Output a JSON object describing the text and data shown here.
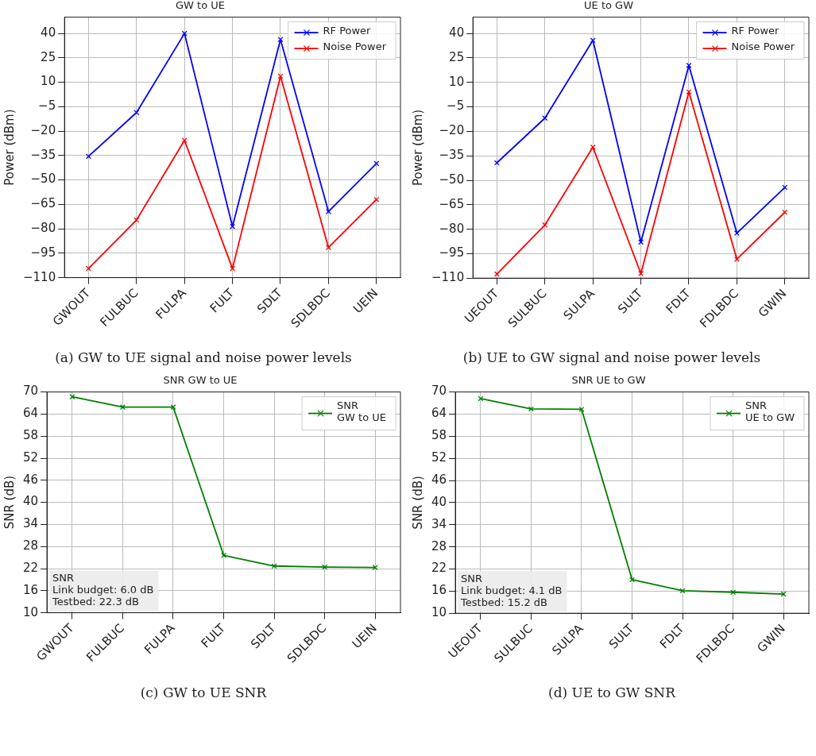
{
  "chart_data": [
    {
      "type": "line",
      "title": "GW to UE",
      "ylabel": "Power (dBm)",
      "categories": [
        "GWOUT",
        "FULBUC",
        "FULPA",
        "FULT",
        "SDLT",
        "SDLBDC",
        "UEIN"
      ],
      "series": [
        {
          "name": "RF Power",
          "color": "#0000ff",
          "values": [
            -35.5,
            -8.6,
            40,
            -78.6,
            36.3,
            -69.4,
            -39.9
          ]
        },
        {
          "name": "Noise Power",
          "color": "#ff0000",
          "values": [
            -104.4,
            -74.6,
            -25.7,
            -104.4,
            13.7,
            -91.5,
            -62
          ]
        }
      ],
      "ylim": [
        -110,
        50
      ],
      "yticks": [
        -110,
        -95,
        -80,
        -65,
        -50,
        -35,
        -20,
        -5,
        10,
        25,
        40
      ],
      "grid": true,
      "legend": "top right",
      "marker": "cross",
      "line_style": "solid",
      "annotations": [
        "(a) GW to UE signal and noise power levels"
      ]
    },
    {
      "type": "line",
      "title": "UE to GW",
      "ylabel": "Power (dBm)",
      "categories": [
        "UEOUT",
        "SULBUC",
        "SULPA",
        "SULT",
        "FDLT",
        "FDLBDC",
        "GWIN"
      ],
      "series": [
        {
          "name": "RF Power",
          "color": "#0000ff",
          "values": [
            -39.3,
            -11.9,
            35.8,
            -87.9,
            20.4,
            -82.4,
            -54.4
          ]
        },
        {
          "name": "Noise Power",
          "color": "#ff0000",
          "values": [
            -107.5,
            -77.4,
            -29.7,
            -107.2,
            4.2,
            -98.4,
            -69.6
          ]
        }
      ],
      "ylim": [
        -110,
        50
      ],
      "yticks": [
        -110,
        -95,
        -80,
        -65,
        -50,
        -35,
        -20,
        -5,
        10,
        25,
        40
      ],
      "grid": true,
      "legend": "top right",
      "marker": "cross",
      "line_style": "solid",
      "annotations": [
        "(b) UE to GW signal and noise power levels"
      ]
    },
    {
      "type": "line",
      "title": "SNR GW to UE",
      "ylabel": "SNR (dB)",
      "categories": [
        "GWOUT",
        "FULBUC",
        "FULPA",
        "FULT",
        "SDLT",
        "SDLBDC",
        "UEIN"
      ],
      "series": [
        {
          "name": "SNR\nGW to UE",
          "color": "#008000",
          "values": [
            68.7,
            65.9,
            65.9,
            25.6,
            22.7,
            22.4,
            22.3
          ]
        }
      ],
      "ylim": [
        10,
        70
      ],
      "yticks": [
        10,
        16,
        22,
        28,
        34,
        40,
        46,
        52,
        58,
        64,
        70
      ],
      "grid": true,
      "legend": "top right",
      "marker": "cross",
      "line_style": "solid",
      "annotations": [
        "(c) GW to UE SNR",
        "SNR\nLink budget: 6.0 dB\nTestbed: 22.3 dB"
      ]
    },
    {
      "type": "line",
      "title": "SNR UE to GW",
      "ylabel": "SNR (dB)",
      "categories": [
        "UEOUT",
        "SULBUC",
        "SULPA",
        "SULT",
        "FDLT",
        "FDLBDC",
        "GWIN"
      ],
      "series": [
        {
          "name": "SNR\nUE to GW",
          "color": "#008000",
          "values": [
            68.2,
            65.4,
            65.3,
            19.1,
            16.1,
            15.7,
            15.2
          ]
        }
      ],
      "ylim": [
        10,
        70
      ],
      "yticks": [
        10,
        16,
        22,
        28,
        34,
        40,
        46,
        52,
        58,
        64,
        70
      ],
      "grid": true,
      "legend": "top right",
      "marker": "cross",
      "line_style": "solid",
      "annotations": [
        "(d) UE to GW SNR",
        "SNR\nLink budget: 4.1 dB\nTestbed: 15.2 dB"
      ]
    }
  ]
}
